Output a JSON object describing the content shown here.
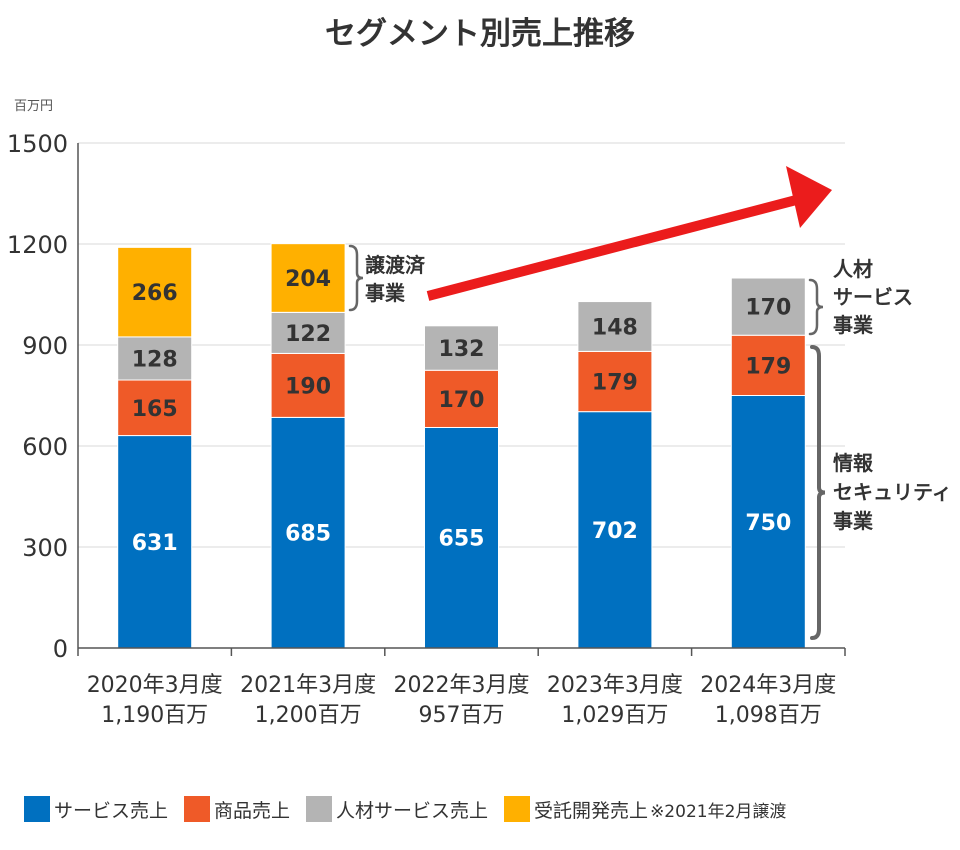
{
  "title": "セグメント別売上推移",
  "unit_label": "百万円",
  "legend_note": "※2021年2月譲渡",
  "colors": {
    "service": "#0070C0",
    "product": "#EF5A28",
    "hr": "#B4B4B4",
    "outsourcing": "#FFB000",
    "arrow": "#EB1C1C",
    "brace": "#666666"
  },
  "annotations": {
    "transferred": [
      "譲渡済",
      "事業"
    ],
    "hr_business": [
      "人材",
      "サービス",
      "事業"
    ],
    "security_business": [
      "情報",
      "セキュリティ",
      "事業"
    ]
  },
  "chart_data": {
    "type": "bar",
    "stacked": true,
    "title": "セグメント別売上推移",
    "ylabel": "百万円",
    "ylim": [
      0,
      1500
    ],
    "yticks": [
      0,
      300,
      600,
      900,
      1200,
      1500
    ],
    "grid": true,
    "legend_position": "bottom",
    "categories": [
      "2020年3月度",
      "2021年3月度",
      "2022年3月度",
      "2023年3月度",
      "2024年3月度"
    ],
    "totals": [
      "1,190百万",
      "1,200百万",
      "957百万",
      "1,029百万",
      "1,098百万"
    ],
    "series": [
      {
        "name": "サービス売上",
        "color": "#0070C0",
        "label_color": "#ffffff",
        "values": [
          631,
          685,
          655,
          702,
          750
        ]
      },
      {
        "name": "商品売上",
        "color": "#EF5A28",
        "label_color": "#333333",
        "values": [
          165,
          190,
          170,
          179,
          179
        ]
      },
      {
        "name": "人材サービス売上",
        "color": "#B4B4B4",
        "label_color": "#333333",
        "values": [
          128,
          122,
          132,
          148,
          170
        ]
      },
      {
        "name": "受託開発売上",
        "color": "#FFB000",
        "label_color": "#333333",
        "values": [
          266,
          204,
          null,
          null,
          null
        ]
      }
    ]
  }
}
